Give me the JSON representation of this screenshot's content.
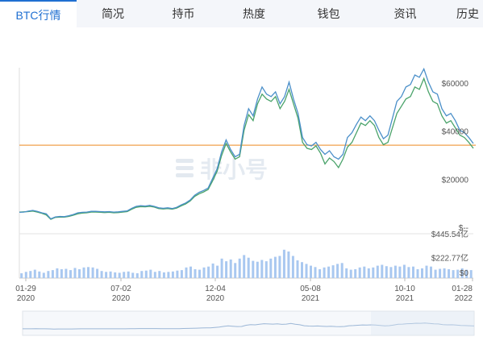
{
  "tabs": [
    {
      "label": "BTC行情",
      "active": true
    },
    {
      "label": "简况"
    },
    {
      "label": "持币"
    },
    {
      "label": "热度"
    },
    {
      "label": "钱包"
    },
    {
      "label": "资讯"
    },
    {
      "label": "历史"
    }
  ],
  "watermark": "非小号",
  "colors": {
    "accent": "#1f6fd1",
    "price_line": "#4a8fc9",
    "marketcap_line": "#4aa36a",
    "reference_line": "#f0a04b",
    "volume_bar": "#a9c8f0"
  },
  "chart_data": {
    "type": "line",
    "x_tick_labels": [
      {
        "date": "01-29",
        "year": "2020"
      },
      {
        "date": "07-02",
        "year": "2020"
      },
      {
        "date": "12-04",
        "year": "2020"
      },
      {
        "date": "05-08",
        "year": "2021"
      },
      {
        "date": "10-10",
        "year": "2021"
      },
      {
        "date": "01-28",
        "year": "2022"
      }
    ],
    "price_axis": {
      "ticks": [
        "$60000",
        "$40000",
        "$20000",
        "$--"
      ],
      "values": [
        60000,
        40000,
        20000,
        0
      ],
      "ylim": [
        0,
        69000
      ]
    },
    "volume_axis": {
      "ticks": [
        "$445.54亿",
        "$222.77亿",
        "$0"
      ],
      "values": [
        445.54,
        222.77,
        0
      ],
      "ylim": [
        0,
        445.54
      ]
    },
    "reference_value": 36800,
    "price_series": [
      8900,
      9000,
      9400,
      9700,
      9300,
      8700,
      8300,
      6200,
      7000,
      7200,
      7100,
      7500,
      8000,
      8700,
      8900,
      9000,
      9300,
      9300,
      9200,
      9100,
      9200,
      9000,
      9100,
      9300,
      9500,
      10600,
      11400,
      11700,
      11500,
      11800,
      11400,
      10800,
      10600,
      10800,
      10500,
      11000,
      12000,
      12800,
      14000,
      16000,
      17200,
      18000,
      19000,
      23000,
      27000,
      34000,
      39000,
      35000,
      32000,
      33000,
      45000,
      52000,
      49000,
      56000,
      61000,
      58000,
      57000,
      59000,
      54000,
      57000,
      63000,
      56000,
      50000,
      40000,
      37000,
      36500,
      38000,
      35000,
      33000,
      34500,
      32000,
      31000,
      33000,
      40000,
      42000,
      45500,
      48500,
      47000,
      49000,
      47000,
      43000,
      39500,
      41000,
      48000,
      55000,
      57000,
      61000,
      62000,
      66000,
      65000,
      68500,
      63000,
      59000,
      58000,
      52000,
      49000,
      50000,
      47000,
      43000,
      42000,
      40000,
      37500
    ],
    "marketcap_series": [
      9000,
      9100,
      9200,
      9400,
      9000,
      8500,
      7800,
      6000,
      6800,
      6900,
      6900,
      7200,
      7700,
      8300,
      8600,
      8700,
      9000,
      9000,
      8900,
      8800,
      8900,
      8700,
      8800,
      9000,
      9200,
      10200,
      11000,
      11300,
      11200,
      11400,
      11100,
      10500,
      10300,
      10500,
      10200,
      10700,
      11600,
      12400,
      13600,
      15500,
      16600,
      17400,
      18400,
      22000,
      26000,
      32500,
      37500,
      34000,
      31000,
      32000,
      43000,
      49500,
      47000,
      54000,
      58000,
      56000,
      55000,
      57000,
      52000,
      55000,
      60000,
      54000,
      48000,
      38000,
      35500,
      35000,
      36500,
      33500,
      29000,
      31500,
      30000,
      27500,
      31000,
      36000,
      38000,
      42000,
      46000,
      45000,
      47000,
      45000,
      40000,
      37000,
      38000,
      44000,
      50000,
      53000,
      56000,
      57000,
      61000,
      60000,
      64500,
      59000,
      55000,
      54000,
      49000,
      46000,
      47000,
      44000,
      41000,
      40000,
      38000,
      35500
    ],
    "volume_series": [
      55,
      70,
      80,
      95,
      75,
      60,
      80,
      90,
      110,
      100,
      105,
      90,
      115,
      100,
      120,
      125,
      120,
      105,
      80,
      70,
      75,
      65,
      60,
      70,
      75,
      60,
      55,
      80,
      85,
      95,
      70,
      80,
      65,
      70,
      75,
      85,
      90,
      120,
      130,
      100,
      95,
      120,
      130,
      165,
      140,
      220,
      190,
      210,
      170,
      220,
      260,
      230,
      195,
      185,
      205,
      190,
      220,
      240,
      250,
      320,
      300,
      250,
      200,
      180,
      160,
      140,
      125,
      100,
      120,
      130,
      145,
      160,
      170,
      110,
      95,
      100,
      120,
      130,
      110,
      120,
      140,
      150,
      135,
      125,
      140,
      130,
      150,
      125,
      130,
      100,
      110,
      140,
      130,
      95,
      105,
      110,
      100,
      90,
      95,
      110,
      95,
      90
    ]
  }
}
